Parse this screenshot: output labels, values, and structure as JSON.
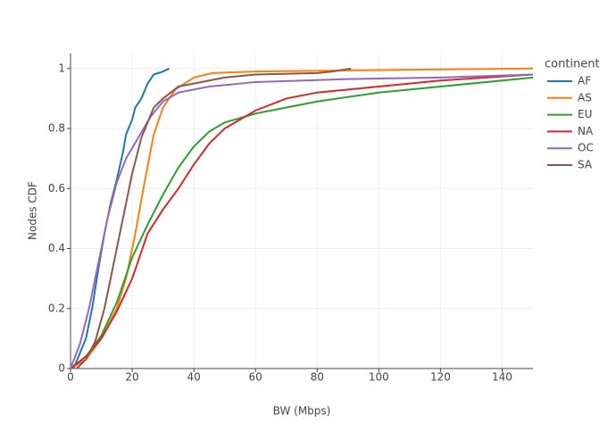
{
  "chart_data": {
    "type": "line",
    "x_label": "BW (Mbps)",
    "y_label": "Nodes CDF",
    "legend_title": "continent",
    "xlim": [
      0,
      150
    ],
    "xticks": [
      0,
      20,
      40,
      60,
      80,
      100,
      120,
      140
    ],
    "ylim": [
      0,
      1.05
    ],
    "yticks": [
      0,
      0.2,
      0.4,
      0.6,
      0.8,
      1
    ],
    "grid": true,
    "legend": "right",
    "series": [
      {
        "name": "AF",
        "color": "#1f77b4",
        "x": [
          1,
          3,
          5,
          7,
          9,
          11,
          13,
          15,
          17,
          18,
          20,
          21,
          23,
          25,
          27,
          30,
          32
        ],
        "values": [
          0,
          0.05,
          0.1,
          0.2,
          0.33,
          0.45,
          0.55,
          0.63,
          0.72,
          0.78,
          0.83,
          0.87,
          0.9,
          0.95,
          0.98,
          0.99,
          1.0
        ]
      },
      {
        "name": "AS",
        "color": "#ff7f0e",
        "x": [
          0,
          5,
          10,
          15,
          18,
          21,
          24,
          27,
          30,
          34,
          40,
          46,
          60,
          100,
          150
        ],
        "values": [
          0,
          0.03,
          0.1,
          0.2,
          0.3,
          0.45,
          0.62,
          0.78,
          0.87,
          0.93,
          0.97,
          0.985,
          0.99,
          0.995,
          1.0
        ]
      },
      {
        "name": "EU",
        "color": "#2ca02c",
        "x": [
          0,
          5,
          10,
          15,
          20,
          25,
          30,
          35,
          40,
          45,
          50,
          60,
          80,
          100,
          120,
          150
        ],
        "values": [
          0,
          0.04,
          0.11,
          0.22,
          0.37,
          0.48,
          0.58,
          0.67,
          0.74,
          0.79,
          0.82,
          0.85,
          0.89,
          0.92,
          0.94,
          0.97
        ]
      },
      {
        "name": "NA",
        "color": "#d62728",
        "x": [
          0,
          5,
          10,
          15,
          20,
          25,
          30,
          35,
          40,
          45,
          50,
          60,
          70,
          80,
          100,
          120,
          150
        ],
        "values": [
          0,
          0.04,
          0.1,
          0.19,
          0.3,
          0.45,
          0.53,
          0.6,
          0.68,
          0.75,
          0.8,
          0.86,
          0.9,
          0.92,
          0.94,
          0.96,
          0.98
        ]
      },
      {
        "name": "OC",
        "color": "#9467bd",
        "x": [
          0,
          3,
          6,
          9,
          12,
          15,
          18,
          22,
          26,
          30,
          35,
          45,
          60,
          90,
          120,
          150
        ],
        "values": [
          0,
          0.08,
          0.2,
          0.35,
          0.5,
          0.62,
          0.7,
          0.77,
          0.84,
          0.89,
          0.92,
          0.94,
          0.955,
          0.965,
          0.97,
          0.98
        ]
      },
      {
        "name": "SA",
        "color": "#8c564b",
        "x": [
          2,
          5,
          8,
          11,
          14,
          17,
          20,
          23,
          27,
          30,
          35,
          40,
          50,
          60,
          80,
          85,
          91
        ],
        "values": [
          0,
          0.03,
          0.09,
          0.2,
          0.35,
          0.5,
          0.65,
          0.77,
          0.87,
          0.9,
          0.94,
          0.95,
          0.97,
          0.98,
          0.985,
          0.99,
          1.0
        ]
      }
    ]
  }
}
